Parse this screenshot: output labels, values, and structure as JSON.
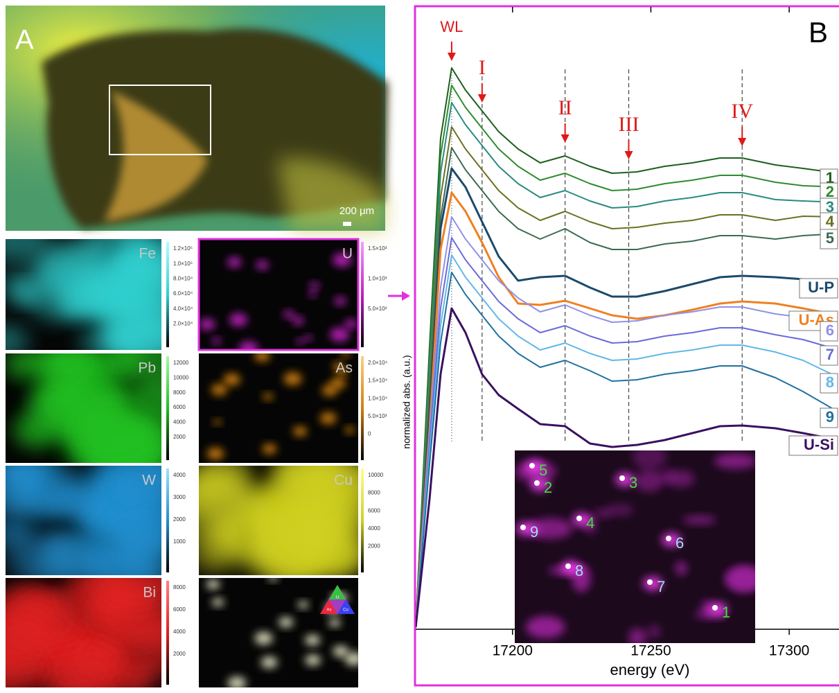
{
  "panel_a": {
    "label": "A",
    "scale": "200 μm"
  },
  "maps": [
    {
      "element": "Fe",
      "ticks": [
        "1.2×10⁵",
        "1.0×10⁵",
        "8.0×10⁴",
        "6.0×10⁴",
        "4.0×10⁴",
        "2.0×10⁴"
      ]
    },
    {
      "element": "U",
      "ticks": [
        "1.5×10³",
        "1.0×10³",
        "5.0×10²"
      ]
    },
    {
      "element": "Pb",
      "ticks": [
        "12000",
        "10000",
        "8000",
        "6000",
        "4000",
        "2000"
      ]
    },
    {
      "element": "As",
      "ticks": [
        "2.0×10⁴",
        "1.5×10⁴",
        "1.0×10⁴",
        "5.0×10³",
        "0"
      ]
    },
    {
      "element": "W",
      "ticks": [
        "4000",
        "3000",
        "2000",
        "1000"
      ]
    },
    {
      "element": "Cu",
      "ticks": [
        "10000",
        "8000",
        "6000",
        "4000",
        "2000"
      ]
    },
    {
      "element": "Bi",
      "ticks": [
        "8000",
        "6000",
        "4000",
        "2000"
      ]
    }
  ],
  "triangle": [
    "U",
    "As",
    "Cu"
  ],
  "inset": {
    "points": [
      "5",
      "2",
      "3",
      "4",
      "9",
      "6",
      "8",
      "7",
      "1"
    ]
  },
  "chart_data": {
    "type": "line",
    "panel_label": "B",
    "x_label": "energy (eV)",
    "y_label": "normalized abs. (a.u.)",
    "xlim": [
      17165,
      17318
    ],
    "ylim": [
      0,
      898
    ],
    "xticks": [
      17200,
      17250,
      17300
    ],
    "annotations": [
      {
        "label": "WL",
        "x": 17178
      },
      {
        "label": "I",
        "x": 17189
      },
      {
        "label": "II",
        "x": 17219
      },
      {
        "label": "III",
        "x": 17242
      },
      {
        "label": "IV",
        "x": 17283
      }
    ],
    "x": [
      17165,
      17170,
      17174,
      17178,
      17183,
      17189,
      17195,
      17202,
      17210,
      17219,
      17228,
      17236,
      17245,
      17255,
      17265,
      17275,
      17283,
      17295,
      17305,
      17318
    ],
    "series": [
      {
        "name": "1",
        "color": "#1c5e1c",
        "values": [
          3,
          408,
          708,
          810,
          778,
          748,
          718,
          693,
          673,
          683,
          668,
          658,
          660,
          668,
          673,
          680,
          680,
          670,
          665,
          658
        ]
      },
      {
        "name": "2",
        "color": "#2e8b2e",
        "values": [
          3,
          388,
          683,
          785,
          753,
          723,
          693,
          668,
          648,
          658,
          643,
          633,
          635,
          643,
          648,
          655,
          655,
          645,
          640,
          638
        ]
      },
      {
        "name": "3",
        "color": "#2a8a80",
        "values": [
          3,
          368,
          658,
          760,
          728,
          698,
          668,
          643,
          623,
          633,
          618,
          608,
          610,
          618,
          623,
          630,
          630,
          620,
          618,
          616
        ]
      },
      {
        "name": "4",
        "color": "#6b7020",
        "values": [
          3,
          343,
          623,
          725,
          693,
          663,
          633,
          608,
          590,
          603,
          588,
          578,
          580,
          586,
          590,
          598,
          598,
          590,
          596,
          595
        ]
      },
      {
        "name": "5",
        "color": "#3a6b50",
        "values": [
          3,
          323,
          593,
          695,
          663,
          633,
          603,
          578,
          563,
          578,
          558,
          548,
          548,
          556,
          560,
          568,
          568,
          563,
          568,
          571
        ]
      },
      {
        "name": "U-P",
        "color": "#1a4a6b",
        "values": [
          3,
          308,
          578,
          665,
          638,
          588,
          538,
          503,
          508,
          510,
          493,
          480,
          480,
          488,
          498,
          508,
          510,
          508,
          505,
          500
        ]
      },
      {
        "name": "U-As",
        "color": "#f08020",
        "values": [
          3,
          288,
          548,
          630,
          603,
          558,
          508,
          470,
          468,
          474,
          463,
          453,
          448,
          453,
          461,
          470,
          473,
          470,
          463,
          453
        ]
      },
      {
        "name": "6",
        "color": "#9090e8",
        "values": [
          3,
          283,
          493,
          595,
          563,
          533,
          503,
          478,
          458,
          468,
          453,
          443,
          445,
          453,
          458,
          465,
          465,
          455,
          450,
          438
        ]
      },
      {
        "name": "7",
        "color": "#6a6ad8",
        "values": [
          3,
          268,
          463,
          565,
          533,
          503,
          473,
          448,
          428,
          438,
          423,
          413,
          415,
          423,
          428,
          435,
          435,
          425,
          418,
          403
        ]
      },
      {
        "name": "8",
        "color": "#60b8e8",
        "values": [
          3,
          253,
          438,
          540,
          508,
          478,
          448,
          423,
          403,
          413,
          398,
          388,
          390,
          398,
          403,
          410,
          410,
          400,
          388,
          363
        ]
      },
      {
        "name": "9",
        "color": "#2070a0",
        "values": [
          3,
          238,
          413,
          515,
          483,
          453,
          423,
          398,
          378,
          388,
          373,
          358,
          360,
          368,
          373,
          380,
          380,
          363,
          343,
          313
        ]
      },
      {
        "name": "U-Si",
        "color": "#3a1060",
        "values": [
          3,
          188,
          368,
          463,
          428,
          368,
          338,
          318,
          296,
          293,
          268,
          263,
          266,
          273,
          283,
          293,
          294,
          290,
          283,
          273
        ]
      }
    ]
  }
}
